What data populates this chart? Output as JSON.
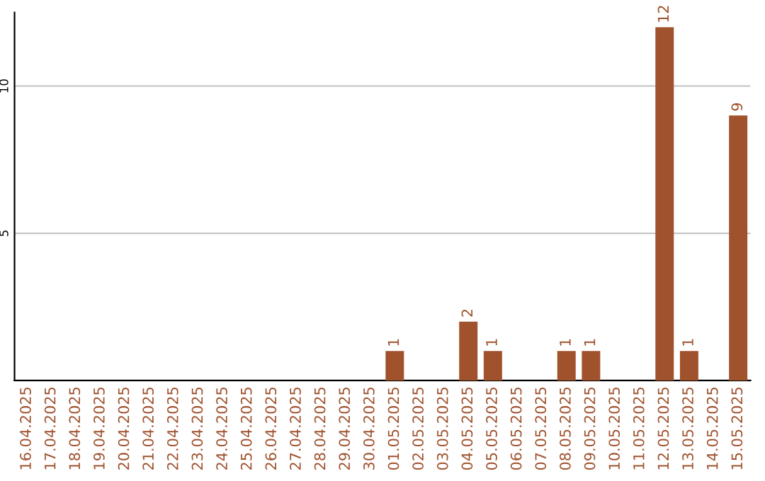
{
  "chart_data": {
    "type": "bar",
    "categories": [
      "16.04.2025",
      "17.04.2025",
      "18.04.2025",
      "19.04.2025",
      "20.04.2025",
      "21.04.2025",
      "22.04.2025",
      "23.04.2025",
      "24.04.2025",
      "25.04.2025",
      "26.04.2025",
      "27.04.2025",
      "28.04.2025",
      "29.04.2025",
      "30.04.2025",
      "01.05.2025",
      "02.05.2025",
      "03.05.2025",
      "04.05.2025",
      "05.05.2025",
      "06.05.2025",
      "07.05.2025",
      "08.05.2025",
      "09.05.2025",
      "10.05.2025",
      "11.05.2025",
      "12.05.2025",
      "13.05.2025",
      "14.05.2025",
      "15.05.2025"
    ],
    "values": [
      0,
      0,
      0,
      0,
      0,
      0,
      0,
      0,
      0,
      0,
      0,
      0,
      0,
      0,
      0,
      1,
      0,
      0,
      2,
      1,
      0,
      0,
      1,
      1,
      0,
      0,
      12,
      1,
      0,
      9
    ],
    "value_labels": [
      null,
      null,
      null,
      null,
      null,
      null,
      null,
      null,
      null,
      null,
      null,
      null,
      null,
      null,
      null,
      "1",
      null,
      null,
      "2",
      "1",
      null,
      null,
      "1",
      "1",
      null,
      null,
      "12",
      "1",
      null,
      "9"
    ],
    "color": "#a0522d",
    "ylim": [
      0,
      12.5
    ],
    "yticks": [
      5,
      10
    ],
    "grid": "y",
    "legend": false
  }
}
